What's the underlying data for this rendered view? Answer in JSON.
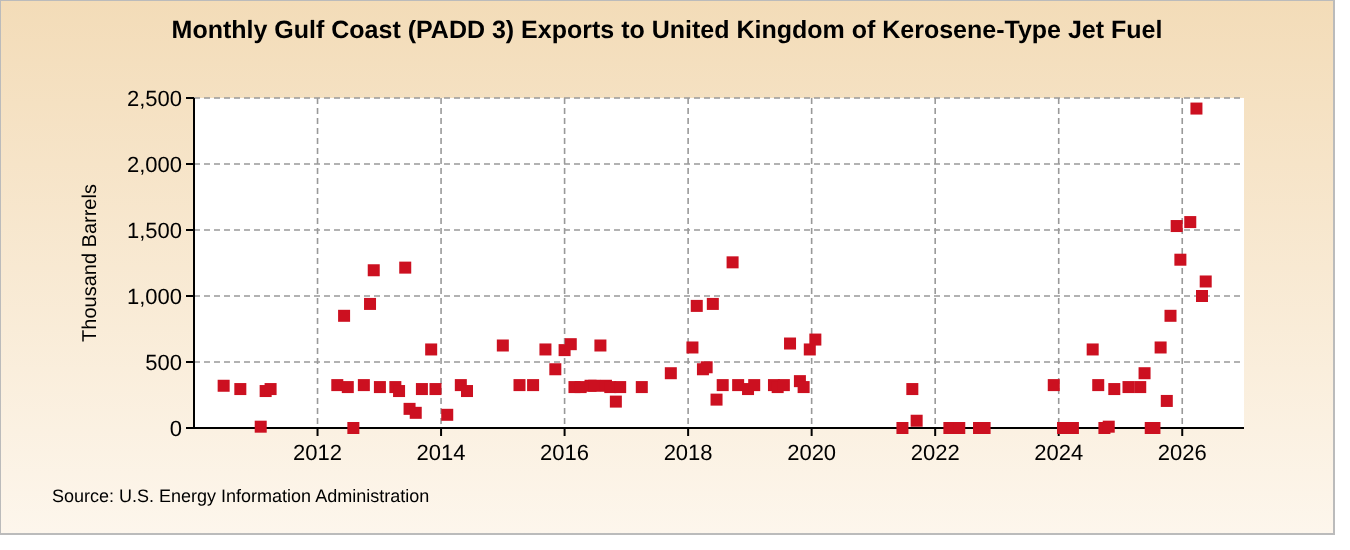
{
  "chart_data": {
    "type": "scatter",
    "title": "Monthly Gulf Coast (PADD 3) Exports to United Kingdom of Kerosene-Type Jet Fuel",
    "ylabel": "Thousand Barrels",
    "annotations": [
      "Source: U.S. Energy Information Administration"
    ],
    "x": [
      2010.48,
      2010.75,
      2011.08,
      2011.16,
      2011.24,
      2012.32,
      2012.43,
      2012.49,
      2012.58,
      2012.75,
      2012.85,
      2012.91,
      2013.01,
      2013.26,
      2013.32,
      2013.42,
      2013.49,
      2013.59,
      2013.69,
      2013.84,
      2013.91,
      2014.1,
      2014.32,
      2014.42,
      2015.0,
      2015.27,
      2015.49,
      2015.69,
      2015.85,
      2016.0,
      2016.1,
      2016.16,
      2016.26,
      2016.42,
      2016.48,
      2016.58,
      2016.67,
      2016.74,
      2016.83,
      2016.9,
      2017.25,
      2017.72,
      2018.07,
      2018.14,
      2018.24,
      2018.3,
      2018.4,
      2018.46,
      2018.56,
      2018.72,
      2018.81,
      2018.97,
      2019.07,
      2019.39,
      2019.45,
      2019.55,
      2019.65,
      2019.81,
      2019.87,
      2019.97,
      2020.06,
      2021.47,
      2021.63,
      2021.7,
      2022.23,
      2022.39,
      2022.71,
      2022.8,
      2023.92,
      2024.07,
      2024.23,
      2024.55,
      2024.64,
      2024.74,
      2024.81,
      2024.9,
      2025.13,
      2025.32,
      2025.39,
      2025.49,
      2025.55,
      2025.65,
      2025.75,
      2025.81,
      2025.91,
      2025.97,
      2026.13,
      2026.23,
      2026.32,
      2026.38
    ],
    "series": [
      {
        "color": "#cc1020",
        "values": [
          320,
          295,
          10,
          280,
          295,
          325,
          850,
          310,
          0,
          325,
          940,
          1195,
          310,
          310,
          280,
          1215,
          145,
          115,
          295,
          595,
          295,
          100,
          325,
          280,
          625,
          325,
          325,
          595,
          445,
          590,
          635,
          310,
          310,
          320,
          320,
          625,
          320,
          310,
          200,
          310,
          310,
          415,
          610,
          925,
          445,
          460,
          940,
          215,
          325,
          1255,
          325,
          295,
          325,
          325,
          310,
          325,
          640,
          355,
          310,
          595,
          670,
          0,
          295,
          55,
          0,
          0,
          0,
          0,
          325,
          0,
          0,
          595,
          325,
          0,
          10,
          295,
          310,
          310,
          415,
          0,
          0,
          610,
          205,
          850,
          1530,
          1275,
          1560,
          2420,
          1000,
          1110
        ]
      }
    ],
    "xlim": [
      2010,
      2027
    ],
    "xticks": [
      2012,
      2014,
      2016,
      2018,
      2020,
      2022,
      2024,
      2026
    ],
    "ylim": [
      0,
      2500
    ],
    "yticks": [
      0,
      500,
      {
        "value": 1000,
        "label": "1,000"
      },
      {
        "value": 1500,
        "label": "1,500"
      },
      {
        "value": 2000,
        "label": "2,000"
      },
      {
        "value": 2500,
        "label": "2,500"
      }
    ],
    "grid": true,
    "marker": "square"
  }
}
